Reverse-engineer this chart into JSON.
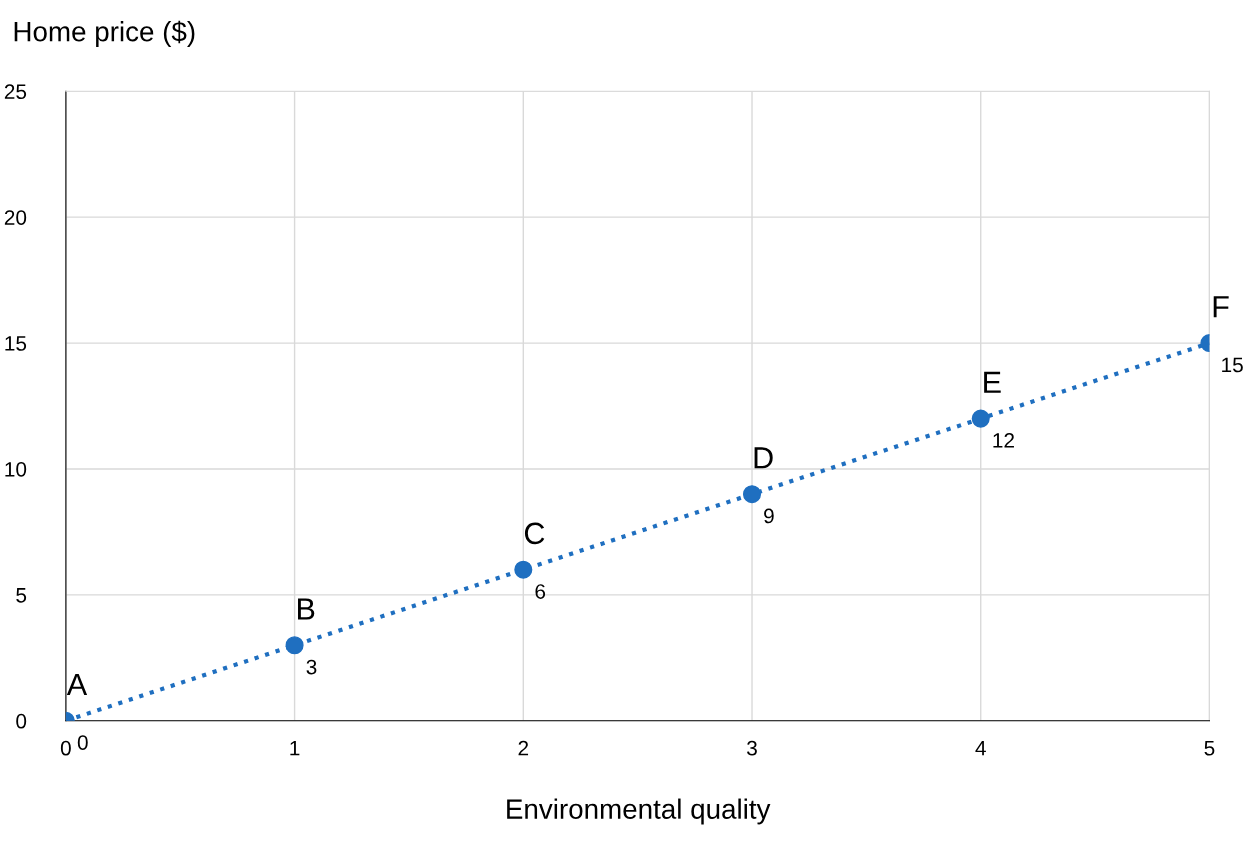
{
  "chart_data": {
    "type": "line",
    "xlabel": "Environmental quality",
    "ylabel": "Home price ($)",
    "x": [
      0,
      1,
      2,
      3,
      4,
      5
    ],
    "series": [
      {
        "color": "#1f6fc0",
        "values": [
          0,
          3,
          6,
          9,
          12,
          15
        ]
      }
    ],
    "xlim": [
      0,
      5
    ],
    "xticks": [
      0,
      1,
      2,
      3,
      4,
      5
    ],
    "ylim": [
      0,
      25
    ],
    "yticks": [
      0,
      5,
      10,
      15,
      20,
      25
    ],
    "grid": true,
    "marker": "circle",
    "line_style": "dotted",
    "data_labels": true,
    "annotations": [
      {
        "text": "A",
        "x": 0,
        "y": 0
      },
      {
        "text": "B",
        "x": 1,
        "y": 3
      },
      {
        "text": "C",
        "x": 2,
        "y": 6
      },
      {
        "text": "D",
        "x": 3,
        "y": 9
      },
      {
        "text": "E",
        "x": 4,
        "y": 12
      },
      {
        "text": "F",
        "x": 5,
        "y": 15
      }
    ]
  }
}
